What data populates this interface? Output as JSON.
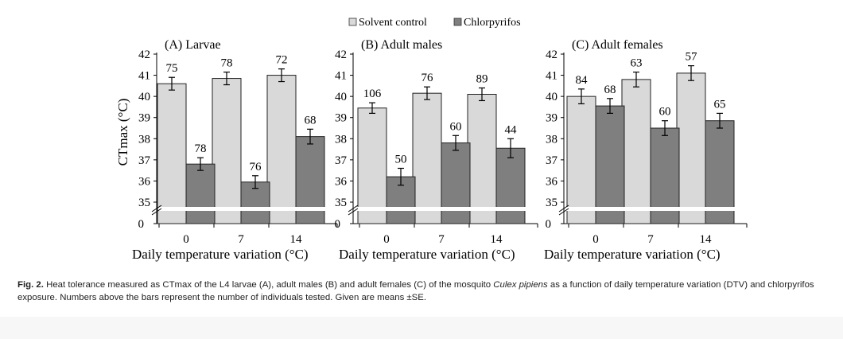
{
  "legend": [
    {
      "label": "Solvent control",
      "color": "#d9d9d9"
    },
    {
      "label": "Chlorpyrifos",
      "color": "#7f7f7f"
    }
  ],
  "chart_data": [
    {
      "type": "bar",
      "title": "(A) Larvae",
      "xlabel": "Daily temperature variation (°C)",
      "ylabel": "CTmax (°C)",
      "categories": [
        "0",
        "7",
        "14"
      ],
      "y_ticks": [
        "35",
        "36",
        "37",
        "38",
        "39",
        "40",
        "41",
        "42"
      ],
      "y_zero_label": "0",
      "ylim": [
        35,
        42
      ],
      "axis_break": true,
      "series": [
        {
          "name": "Solvent control",
          "values": [
            40.6,
            40.85,
            41.0
          ],
          "errors": [
            0.3,
            0.3,
            0.3
          ],
          "n": [
            "75",
            "78",
            "72"
          ]
        },
        {
          "name": "Chlorpyrifos",
          "values": [
            36.8,
            35.95,
            38.1
          ],
          "errors": [
            0.3,
            0.3,
            0.35
          ],
          "n": [
            "78",
            "76",
            "68"
          ]
        }
      ]
    },
    {
      "type": "bar",
      "title": "(B) Adult males",
      "xlabel": "Daily temperature variation (°C)",
      "ylabel": "",
      "categories": [
        "0",
        "7",
        "14"
      ],
      "y_ticks": [
        "35",
        "36",
        "37",
        "38",
        "39",
        "40",
        "41",
        "42"
      ],
      "y_zero_label": "0",
      "ylim": [
        35,
        42
      ],
      "axis_break": true,
      "series": [
        {
          "name": "Solvent control",
          "values": [
            39.45,
            40.15,
            40.1
          ],
          "errors": [
            0.25,
            0.3,
            0.3
          ],
          "n": [
            "106",
            "76",
            "89"
          ]
        },
        {
          "name": "Chlorpyrifos",
          "values": [
            36.2,
            37.8,
            37.55
          ],
          "errors": [
            0.4,
            0.35,
            0.45
          ],
          "n": [
            "50",
            "60",
            "44"
          ]
        }
      ]
    },
    {
      "type": "bar",
      "title": "(C) Adult females",
      "xlabel": "Daily temperature variation (°C)",
      "ylabel": "",
      "categories": [
        "0",
        "7",
        "14"
      ],
      "y_ticks": [
        "35",
        "36",
        "37",
        "38",
        "39",
        "40",
        "41",
        "42"
      ],
      "y_zero_label": "0",
      "ylim": [
        35,
        42
      ],
      "axis_break": true,
      "series": [
        {
          "name": "Solvent control",
          "values": [
            40.0,
            40.8,
            41.1
          ],
          "errors": [
            0.35,
            0.35,
            0.35
          ],
          "n": [
            "84",
            "63",
            "57"
          ]
        },
        {
          "name": "Chlorpyrifos",
          "values": [
            39.55,
            38.5,
            38.85
          ],
          "errors": [
            0.35,
            0.35,
            0.35
          ],
          "n": [
            "68",
            "60",
            "65"
          ]
        }
      ]
    }
  ],
  "caption": {
    "label": "Fig. 2.",
    "text_before": "Heat tolerance measured as CTmax of the L4 larvae (A), adult males (B) and adult females (C) of the mosquito",
    "species": "Culex pipiens",
    "text_after": "as a function of daily temperature variation (DTV) and chlorpyrifos exposure. Numbers above the bars represent the number of individuals tested. Given are means ±SE."
  }
}
